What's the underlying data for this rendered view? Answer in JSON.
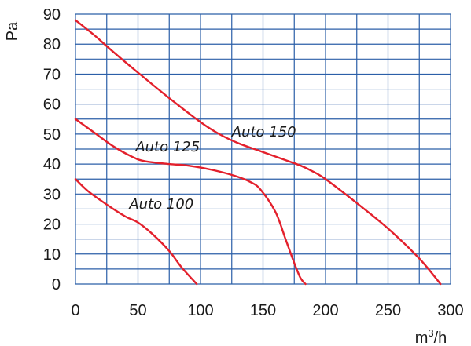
{
  "chart_data": {
    "type": "line",
    "xlabel_base": "m",
    "xlabel_sup": "3",
    "xlabel_rest": "/h",
    "ylabel": "Pa",
    "xlim": [
      0,
      300
    ],
    "ylim": [
      0,
      90
    ],
    "x_ticks": [
      "0",
      "50",
      "100",
      "150",
      "200",
      "250",
      "300"
    ],
    "y_ticks": [
      "0",
      "10",
      "20",
      "30",
      "40",
      "50",
      "60",
      "70",
      "80",
      "90"
    ],
    "grid": true,
    "colors": {
      "grid": "#2b5fa8",
      "curve": "#e3202c",
      "text": "#1a1a1a"
    },
    "series": [
      {
        "name": "Auto 100",
        "label_at": [
          43,
          27
        ],
        "points": [
          [
            0,
            35
          ],
          [
            10,
            31
          ],
          [
            25,
            26.5
          ],
          [
            40,
            22.5
          ],
          [
            50,
            20.5
          ],
          [
            62,
            16.5
          ],
          [
            75,
            11
          ],
          [
            85,
            5.5
          ],
          [
            97,
            0
          ]
        ]
      },
      {
        "name": "Auto 125",
        "label_at": [
          48,
          46
        ],
        "points": [
          [
            0,
            55
          ],
          [
            15,
            50.5
          ],
          [
            30,
            46
          ],
          [
            45,
            42.5
          ],
          [
            55,
            41
          ],
          [
            75,
            40
          ],
          [
            90,
            39.5
          ],
          [
            110,
            38
          ],
          [
            128,
            36
          ],
          [
            140,
            34
          ],
          [
            148,
            31.5
          ],
          [
            160,
            24
          ],
          [
            168,
            15
          ],
          [
            175,
            7
          ],
          [
            180,
            2
          ],
          [
            184,
            0
          ]
        ]
      },
      {
        "name": "Auto 150",
        "label_at": [
          125,
          51
        ],
        "points": [
          [
            0,
            88
          ],
          [
            15,
            83
          ],
          [
            30,
            77.5
          ],
          [
            50,
            70.5
          ],
          [
            75,
            62
          ],
          [
            100,
            54
          ],
          [
            115,
            50
          ],
          [
            130,
            47
          ],
          [
            150,
            44
          ],
          [
            170,
            41
          ],
          [
            180,
            39.5
          ],
          [
            190,
            37.5
          ],
          [
            200,
            35
          ],
          [
            225,
            27
          ],
          [
            250,
            18.5
          ],
          [
            275,
            8.5
          ],
          [
            292,
            0
          ]
        ]
      }
    ]
  }
}
